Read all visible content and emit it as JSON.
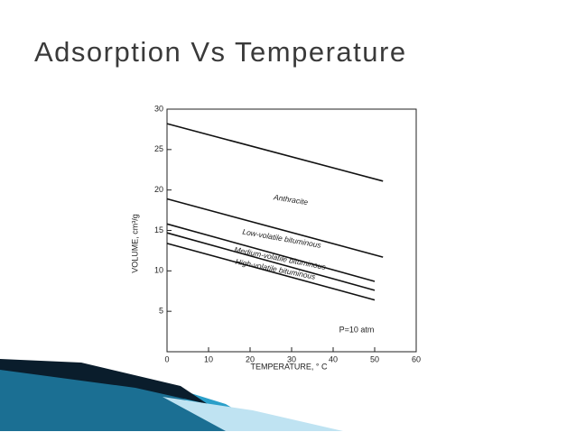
{
  "slide_title": "Adsorption Vs Temperature",
  "chart_data": {
    "type": "line",
    "x_label": "TEMPERATURE, ° C",
    "y_label": "VOLUME, cm³/g",
    "annotation": "P=10 atm",
    "color": "#111111",
    "series": [
      {
        "name": "Anthracite",
        "x": [
          0,
          52
        ],
        "values": [
          28.2,
          21.1
        ]
      },
      {
        "name": "Low-volatile bituminous",
        "x": [
          0,
          52
        ],
        "values": [
          18.9,
          11.7
        ]
      },
      {
        "name": "Medium-volatile bituminous",
        "x": [
          0,
          50
        ],
        "values": [
          15.8,
          8.7
        ]
      },
      {
        "x": [
          0,
          50
        ],
        "values": [
          14.7,
          7.6
        ]
      },
      {
        "name": "High-volatile bituminous",
        "x": [
          0,
          50
        ],
        "values": [
          13.4,
          6.4
        ]
      }
    ],
    "xlim": [
      0,
      60
    ],
    "xticks": [
      0,
      10,
      20,
      30,
      40,
      50,
      60
    ],
    "ylim": [
      0,
      30
    ],
    "yticks": [
      5,
      10,
      15,
      20,
      25,
      30
    ]
  }
}
